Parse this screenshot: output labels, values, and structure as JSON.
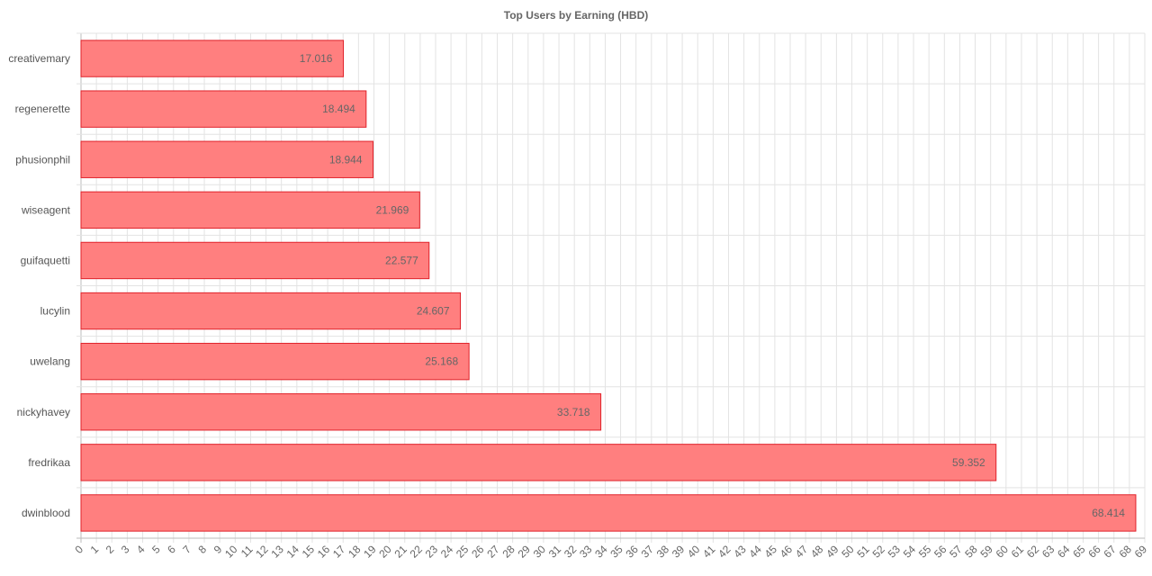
{
  "chart_data": {
    "type": "bar",
    "orientation": "horizontal",
    "title": "Top Users by Earning (HBD)",
    "categories": [
      "creativemary",
      "regenerette",
      "phusionphil",
      "wiseagent",
      "guifaquetti",
      "lucylin",
      "uwelang",
      "nickyhavey",
      "fredrikaa",
      "dwinblood"
    ],
    "values": [
      17.016,
      18.494,
      18.944,
      21.969,
      22.577,
      24.607,
      25.168,
      33.718,
      59.352,
      68.414
    ],
    "data_labels": [
      "17.016",
      "18.494",
      "18.944",
      "21.969",
      "22.577",
      "24.607",
      "25.168",
      "33.718",
      "59.352",
      "68.414"
    ],
    "xlim": [
      0,
      69
    ],
    "x_tick_step": 1,
    "grid": true,
    "colors": {
      "bar_fill": "#ff7f7f",
      "bar_stroke": "#e0222a",
      "grid": "#e3e3e3"
    }
  }
}
